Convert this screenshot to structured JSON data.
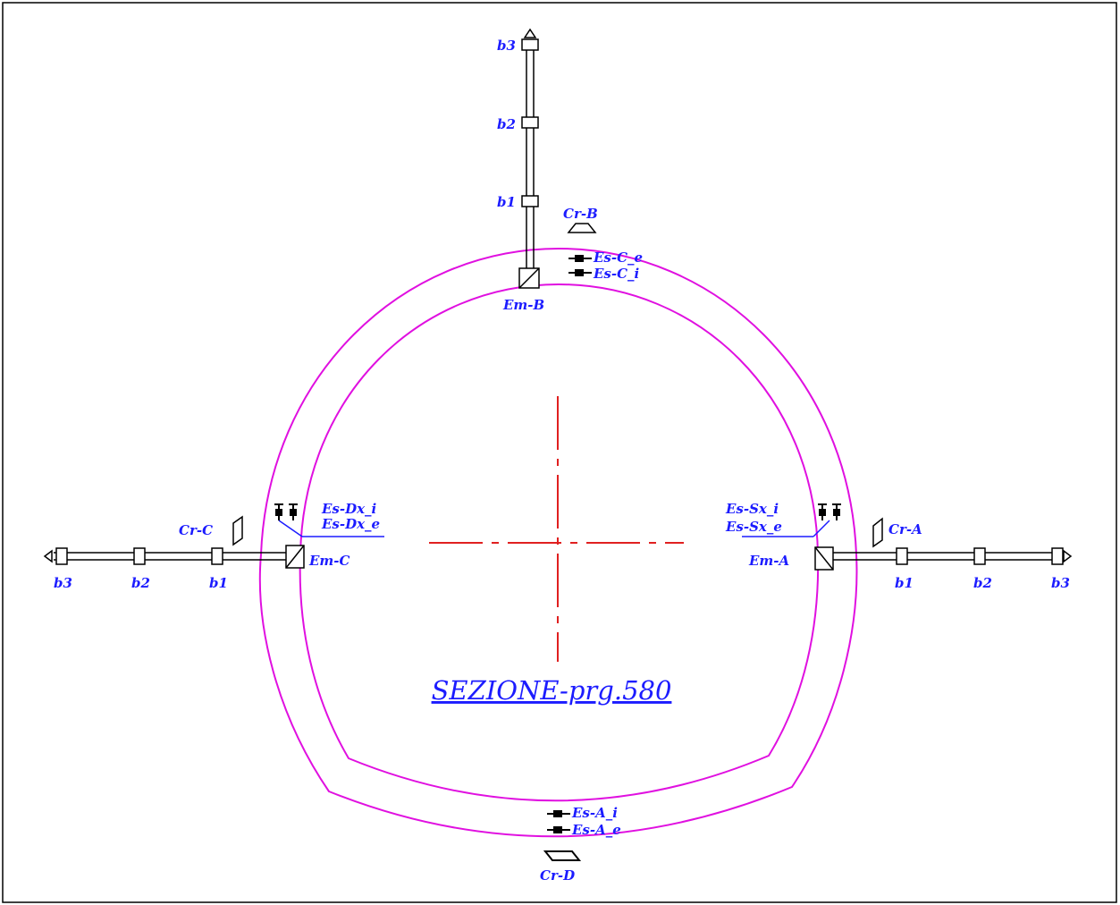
{
  "top_rod": {
    "b3": "b3",
    "b2": "b2",
    "b1": "b1",
    "mirror": "Em-B",
    "crack": "Cr-B",
    "ext": "Es-C_e",
    "int": "Es-C_i"
  },
  "left_rod": {
    "b3": "b3",
    "b2": "b2",
    "b1": "b1",
    "mirror": "Em-C",
    "crack": "Cr-C",
    "int": "Es-Dx_i",
    "ext": "Es-Dx_e"
  },
  "right_rod": {
    "b1": "b1",
    "b2": "b2",
    "b3": "b3",
    "mirror": "Em-A",
    "crack": "Cr-A",
    "int": "Es-Sx_i",
    "ext": "Es-Sx_e"
  },
  "bottom": {
    "int": "Es-A_i",
    "ext": "Es-A_e",
    "crack": "Cr-D"
  },
  "title": "SEZIONE-prg.580"
}
